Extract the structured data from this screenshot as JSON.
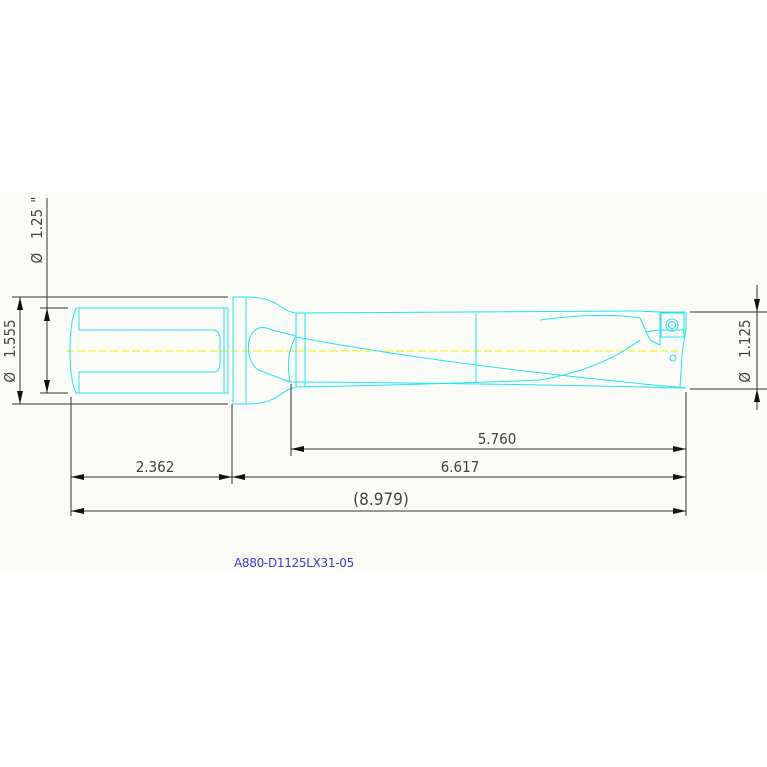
{
  "drawing": {
    "part_number": "A880-D1125LX31-05",
    "colors": {
      "outline": "#22e4ee",
      "centerline": "#f0f000",
      "dimension": "#333333",
      "part_number": "#3a3ae0"
    },
    "dimensions": {
      "shank_diameter": "1.25",
      "shank_diameter_unit": "\"",
      "flange_diameter": "1.555",
      "drill_diameter": "1.125",
      "diameter_symbol": "Ø",
      "flute_length": "5.760",
      "body_length": "6.617",
      "shank_length": "2.362",
      "overall_length": "(8.979)"
    }
  }
}
